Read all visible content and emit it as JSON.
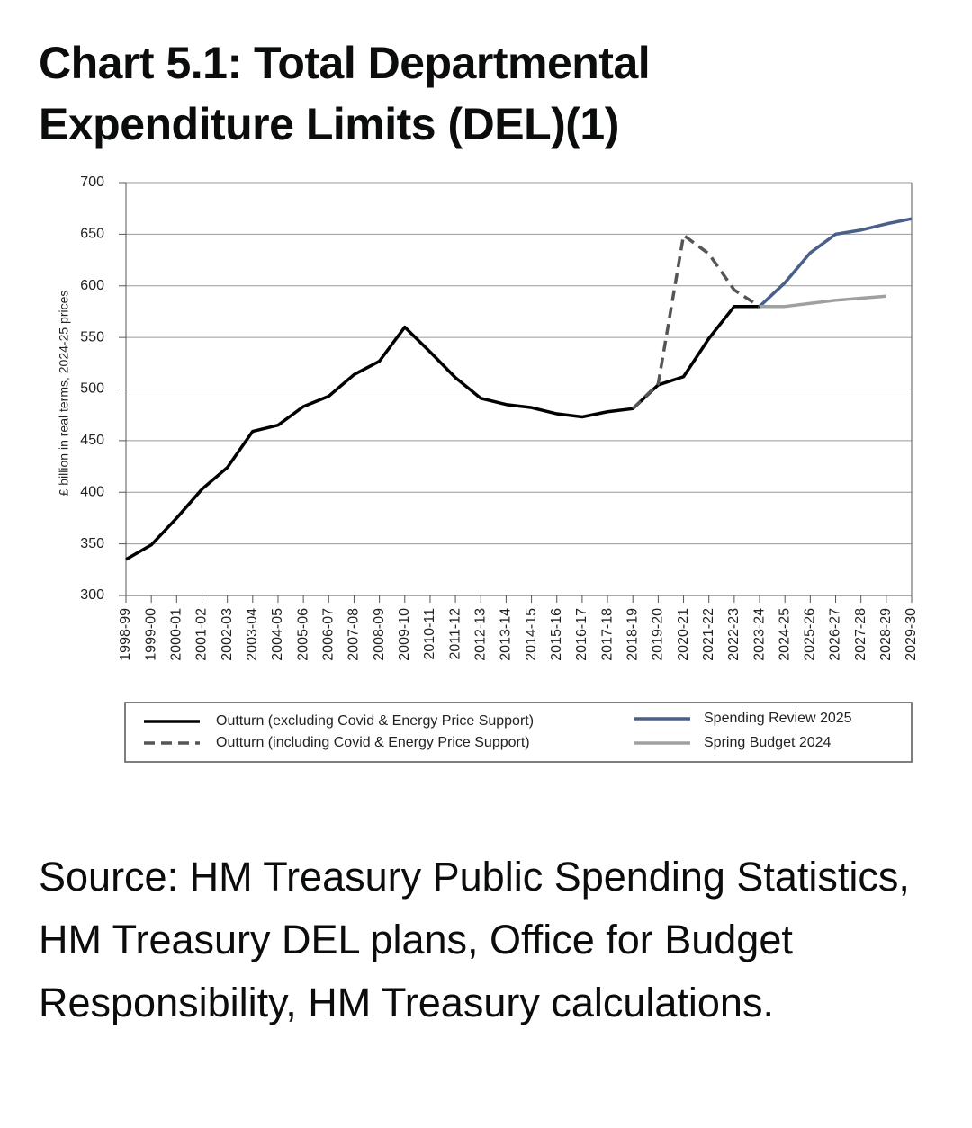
{
  "chart_data": {
    "type": "line",
    "title": "Chart 5.1: Total Departmental Expenditure Limits (DEL)(1)",
    "y_label": "£ billion in real terms, 2024-25 prices",
    "source": "Source: HM Treasury Public Spending Statistics, HM Treasury DEL plans, Office for Budget Responsibility, HM Treasury calculations.",
    "categories": [
      "1998-99",
      "1999-00",
      "2000-01",
      "2001-02",
      "2002-03",
      "2003-04",
      "2004-05",
      "2005-06",
      "2006-07",
      "2007-08",
      "2008-09",
      "2009-10",
      "2010-11",
      "2011-12",
      "2012-13",
      "2013-14",
      "2014-15",
      "2015-16",
      "2016-17",
      "2017-18",
      "2018-19",
      "2019-20",
      "2020-21",
      "2021-22",
      "2022-23",
      "2023-24",
      "2024-25",
      "2025-26",
      "2026-27",
      "2027-28",
      "2028-29",
      "2029-30"
    ],
    "series": [
      {
        "name": "Outturn (excluding Covid & Energy Price Support)",
        "color": "#000000",
        "dashed": false,
        "values": [
          335,
          349,
          375,
          403,
          424,
          459,
          465,
          483,
          493,
          514,
          527,
          560,
          536,
          511,
          491,
          485,
          482,
          476,
          473,
          478,
          481,
          504,
          512,
          549,
          580,
          580,
          null,
          null,
          null,
          null,
          null,
          null
        ]
      },
      {
        "name": "Outturn (including Covid & Energy Price Support)",
        "color": "#555555",
        "dashed": true,
        "values": [
          null,
          null,
          null,
          null,
          null,
          null,
          null,
          null,
          null,
          null,
          null,
          null,
          null,
          null,
          null,
          null,
          null,
          null,
          null,
          null,
          481,
          505,
          649,
          631,
          596,
          580,
          null,
          null,
          null,
          null,
          null,
          null
        ]
      },
      {
        "name": "Spending Review 2025",
        "color": "#4a5f8a",
        "dashed": false,
        "values": [
          null,
          null,
          null,
          null,
          null,
          null,
          null,
          null,
          null,
          null,
          null,
          null,
          null,
          null,
          null,
          null,
          null,
          null,
          null,
          null,
          null,
          null,
          null,
          null,
          null,
          580,
          603,
          632,
          650,
          654,
          660,
          665
        ]
      },
      {
        "name": "Spring Budget 2024",
        "color": "#a0a0a0",
        "dashed": false,
        "values": [
          null,
          null,
          null,
          null,
          null,
          null,
          null,
          null,
          null,
          null,
          null,
          null,
          null,
          null,
          null,
          null,
          null,
          null,
          null,
          null,
          null,
          null,
          null,
          null,
          null,
          580,
          580,
          583,
          586,
          588,
          590,
          null
        ]
      }
    ],
    "ylim": [
      300,
      700
    ],
    "yticks": [
      300,
      350,
      400,
      450,
      500,
      550,
      600,
      650,
      700
    ],
    "grid": true
  }
}
